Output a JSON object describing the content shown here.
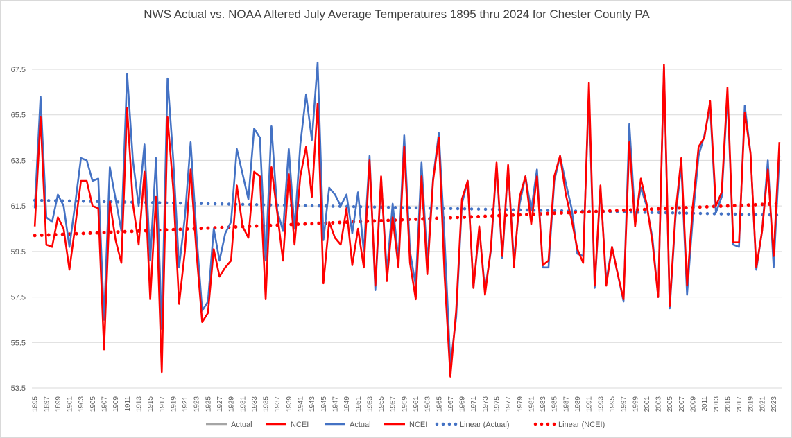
{
  "chart_data": {
    "type": "line",
    "title": "NWS Actual vs. NOAA Altered July Average Temperatures 1895 thru 2024 for Chester County PA",
    "xlabel": "",
    "ylabel": "",
    "ylim": [
      53.5,
      67.5
    ],
    "y_ticks": [
      53.5,
      55.5,
      57.5,
      59.5,
      61.5,
      63.5,
      65.5,
      67.5
    ],
    "x_start_year": 1895,
    "x_end_year": 2024,
    "x_tick_labels": [
      "1895",
      "1897",
      "1899",
      "1901",
      "1903",
      "1905",
      "1907",
      "1909",
      "1911",
      "1913",
      "1915",
      "1917",
      "1919",
      "1921",
      "1923",
      "1925",
      "1927",
      "1929",
      "1931",
      "1933",
      "1935",
      "1937",
      "1939",
      "1941",
      "1943",
      "1945",
      "1947",
      "1949",
      "1951",
      "1953",
      "1955",
      "1957",
      "1959",
      "1961",
      "1963",
      "1965",
      "1967",
      "1969",
      "1971",
      "1973",
      "1975",
      "1977",
      "1979",
      "1981",
      "1983",
      "1985",
      "1987",
      "1989",
      "1991",
      "1993",
      "1995",
      "1997",
      "1999",
      "2001",
      "2003",
      "2005",
      "2007",
      "2009",
      "2011",
      "2013",
      "2015",
      "2017",
      "2019",
      "2021",
      "2023"
    ],
    "grid": "horizontal",
    "legend_position": "bottom",
    "legend": [
      "Actual",
      "NCEI",
      "Actual",
      "NCEI",
      "Linear (Actual)",
      "Linear (NCEI)"
    ],
    "colors": {
      "actual": "#4472c4",
      "ncei": "#ff0000",
      "legend_gray": "#a5a5a5"
    },
    "series": [
      {
        "name": "Actual",
        "values": [
          61.4,
          66.3,
          61.0,
          60.8,
          62.0,
          61.5,
          59.7,
          61.6,
          63.6,
          63.5,
          62.6,
          62.7,
          56.5,
          63.2,
          61.8,
          60.4,
          67.3,
          63.5,
          61.5,
          64.2,
          59.1,
          63.6,
          56.1,
          67.1,
          63.5,
          58.8,
          61.0,
          64.3,
          60.3,
          56.9,
          57.3,
          60.5,
          59.1,
          60.3,
          60.8,
          64.0,
          62.9,
          61.8,
          64.9,
          64.5,
          59.1,
          65.0,
          61.3,
          60.4,
          64.0,
          60.5,
          64.2,
          66.4,
          64.4,
          67.8,
          60.0,
          62.3,
          62.0,
          61.5,
          62.0,
          60.3,
          62.1,
          59.5,
          63.7,
          57.8,
          62.7,
          58.6,
          61.6,
          59.1,
          64.6,
          59.5,
          58.0,
          63.4,
          59.0,
          62.7,
          64.7,
          60.0,
          54.5,
          56.6,
          61.6,
          62.6,
          57.9,
          60.5,
          57.8,
          59.5,
          63.3,
          59.2,
          63.2,
          59.1,
          61.6,
          62.8,
          61.3,
          63.1,
          58.8,
          58.8,
          62.6,
          63.7,
          62.5,
          61.4,
          59.4,
          59.3,
          66.5,
          57.9,
          62.3,
          58.2,
          59.7,
          58.5,
          57.3,
          65.1,
          60.9,
          62.3,
          61.5,
          60.1,
          57.5,
          67.6,
          57.0,
          61.0,
          63.3,
          57.6,
          61.0,
          63.7,
          64.6,
          65.9,
          61.2,
          61.9,
          66.4,
          59.8,
          59.7,
          65.9,
          63.8,
          58.7,
          60.4,
          63.5,
          58.8,
          63.7
        ]
      },
      {
        "name": "NCEI",
        "values": [
          60.6,
          65.4,
          59.8,
          59.7,
          61.0,
          60.5,
          58.7,
          60.6,
          62.6,
          62.6,
          61.5,
          61.4,
          55.2,
          61.7,
          60.0,
          59.0,
          65.8,
          61.6,
          59.8,
          63.0,
          57.4,
          61.9,
          54.2,
          65.4,
          62.2,
          57.2,
          59.5,
          63.1,
          59.5,
          56.4,
          56.8,
          59.6,
          58.4,
          58.8,
          59.1,
          62.4,
          60.6,
          60.1,
          63.0,
          62.8,
          57.4,
          63.2,
          61.2,
          59.1,
          62.9,
          59.8,
          62.8,
          64.1,
          61.9,
          66.0,
          58.1,
          60.8,
          60.1,
          59.8,
          61.4,
          58.9,
          60.5,
          58.8,
          63.5,
          58.0,
          62.8,
          58.2,
          61.0,
          58.8,
          64.1,
          59.0,
          57.4,
          62.8,
          58.5,
          62.6,
          64.5,
          58.4,
          54.0,
          56.9,
          61.8,
          62.6,
          57.9,
          60.6,
          57.6,
          59.6,
          63.4,
          59.3,
          63.3,
          58.8,
          61.9,
          62.8,
          60.7,
          62.8,
          58.9,
          59.1,
          62.8,
          63.7,
          62.0,
          60.9,
          59.6,
          59.0,
          66.9,
          58.0,
          62.4,
          58.0,
          59.7,
          58.5,
          57.4,
          64.3,
          60.6,
          62.7,
          61.6,
          59.9,
          57.5,
          67.7,
          57.1,
          61.2,
          63.6,
          58.0,
          61.5,
          64.1,
          64.5,
          66.1,
          61.5,
          62.1,
          66.7,
          59.9,
          59.9,
          65.6,
          63.8,
          58.8,
          60.4,
          63.1,
          59.3,
          64.3
        ]
      },
      {
        "name": "Linear (Actual)",
        "start": 61.75,
        "end": 61.1
      },
      {
        "name": "Linear (NCEI)",
        "start": 60.2,
        "end": 61.6
      }
    ]
  }
}
